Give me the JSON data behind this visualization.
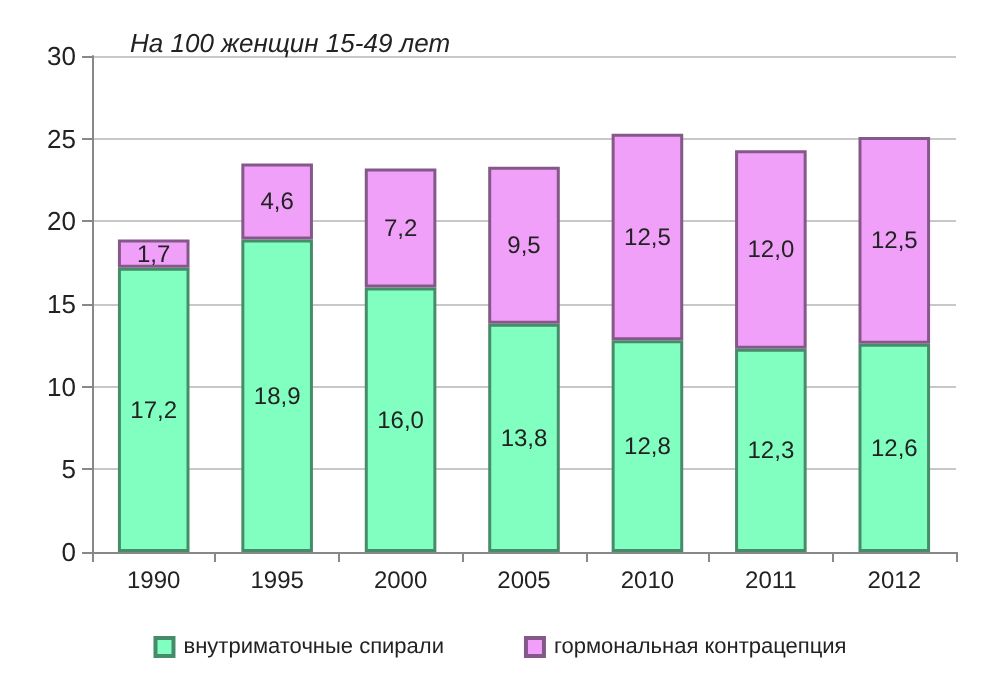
{
  "chart_data": {
    "type": "bar",
    "stacked": true,
    "title": "На 100 женщин 15-49 лет",
    "categories": [
      "1990",
      "1995",
      "2000",
      "2005",
      "2010",
      "2011",
      "2012"
    ],
    "series": [
      {
        "name": "внутриматочные спирали",
        "color": "#80ffc0",
        "values": [
          17.2,
          18.9,
          16.0,
          13.8,
          12.8,
          12.3,
          12.6
        ],
        "value_labels": [
          "17,2",
          "18,9",
          "16,0",
          "13,8",
          "12,8",
          "12,3",
          "12,6"
        ]
      },
      {
        "name": "гормональная контрацепция",
        "color": "#f0a0f8",
        "values": [
          1.7,
          4.6,
          7.2,
          9.5,
          12.5,
          12.0,
          12.5
        ],
        "value_labels": [
          "1,7",
          "4,6",
          "7,2",
          "9,5",
          "12,5",
          "12,0",
          "12,5"
        ]
      }
    ],
    "ylim": [
      0,
      30
    ],
    "yticks": [
      0,
      5,
      10,
      15,
      20,
      25,
      30
    ],
    "grid": "y",
    "legend": "bottom"
  }
}
